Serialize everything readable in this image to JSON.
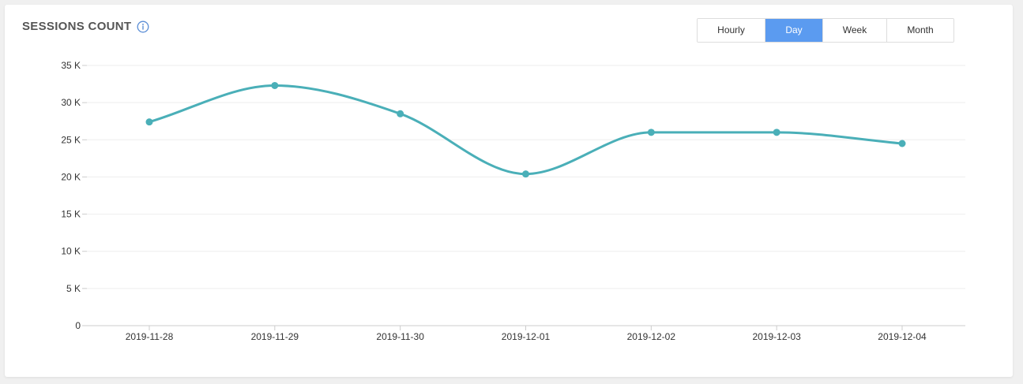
{
  "header": {
    "title": "SESSIONS COUNT",
    "info_icon": "info-circle-icon"
  },
  "granularity": {
    "options": [
      "Hourly",
      "Day",
      "Week",
      "Month"
    ],
    "selected": "Day"
  },
  "colors": {
    "line": "#4aafb8",
    "active_button": "#5b9bf0",
    "grid": "#eeeeee",
    "axis": "#cccccc"
  },
  "chart_data": {
    "type": "line",
    "title": "SESSIONS COUNT",
    "xlabel": "",
    "ylabel": "",
    "categories": [
      "2019-11-28",
      "2019-11-29",
      "2019-11-30",
      "2019-12-01",
      "2019-12-02",
      "2019-12-03",
      "2019-12-04"
    ],
    "series": [
      {
        "values": [
          27400,
          32300,
          28500,
          20400,
          26000,
          26000,
          24500
        ]
      }
    ],
    "ylim": [
      0,
      35000
    ],
    "yticks": [
      0,
      5000,
      10000,
      15000,
      20000,
      25000,
      30000,
      35000
    ],
    "ytick_labels": [
      "0",
      "5 K",
      "10 K",
      "15 K",
      "20 K",
      "25 K",
      "30 K",
      "35 K"
    ],
    "grid": true,
    "legend": "none"
  }
}
